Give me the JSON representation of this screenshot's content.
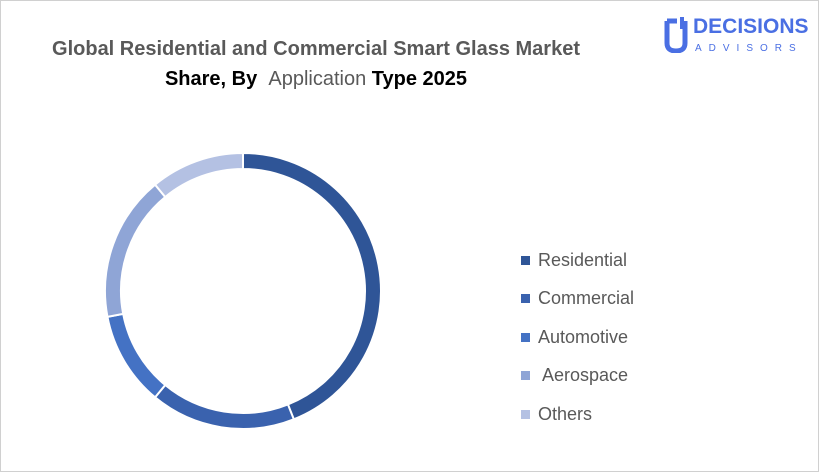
{
  "chart_data": {
    "type": "pie",
    "variant": "donut",
    "title_parts": [
      "Global Residential and Commercial Smart Glass Market",
      "Share, By",
      "Application",
      "Type 2025"
    ],
    "categories": [
      "Residential",
      "Commercial",
      "Automotive",
      " Aerospace",
      "Others"
    ],
    "values": [
      44,
      17,
      11,
      17,
      11
    ],
    "unit": "%",
    "colors": [
      "#2F5597",
      "#3A62AE",
      "#4472C4",
      "#8FA5D6",
      "#B4C1E3"
    ],
    "legend_position": "right"
  },
  "logo": {
    "main": "DECISIONS",
    "sub": "ADVISORS",
    "color": "#4a6fe3"
  }
}
